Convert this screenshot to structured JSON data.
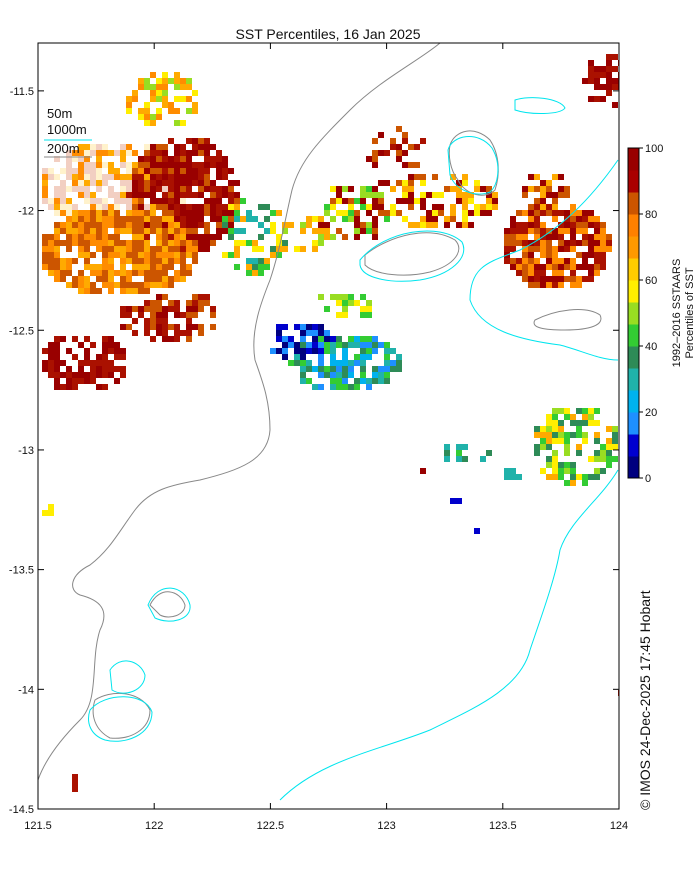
{
  "title": "SST Percentiles, 16 Jan 2025",
  "map": {
    "lon_range": [
      121.5,
      124
    ],
    "lat_range": [
      -14.5,
      -11.3
    ],
    "lon_ticks": [
      "121.5",
      "122",
      "122.5",
      "123",
      "123.5",
      "124"
    ],
    "lat_ticks": [
      "-11.5",
      "-12",
      "-12.5",
      "-13",
      "-13.5",
      "-14",
      "-14.5"
    ],
    "depth_legend": [
      "50m",
      "1000m",
      "200m"
    ],
    "land_color": "#ffffff",
    "contour_1000m_color": "#00e5ee",
    "contour_200m_color": "#888888"
  },
  "colorbar": {
    "ticks": [
      "0",
      "20",
      "40",
      "60",
      "80",
      "100"
    ],
    "label_line1": "1992–2016 SSTAARS",
    "label_line2": "Percentiles of SST",
    "colors": [
      "#00007f",
      "#0000d0",
      "#1e90ff",
      "#00b2ee",
      "#20b2aa",
      "#2e8b57",
      "#33cc33",
      "#99dd22",
      "#ffee00",
      "#ffcc00",
      "#ff9900",
      "#ff8000",
      "#cc5500",
      "#aa0000",
      "#990000"
    ]
  },
  "credit": "© IMOS 24-Dec-2025 17:45 Hobart"
}
